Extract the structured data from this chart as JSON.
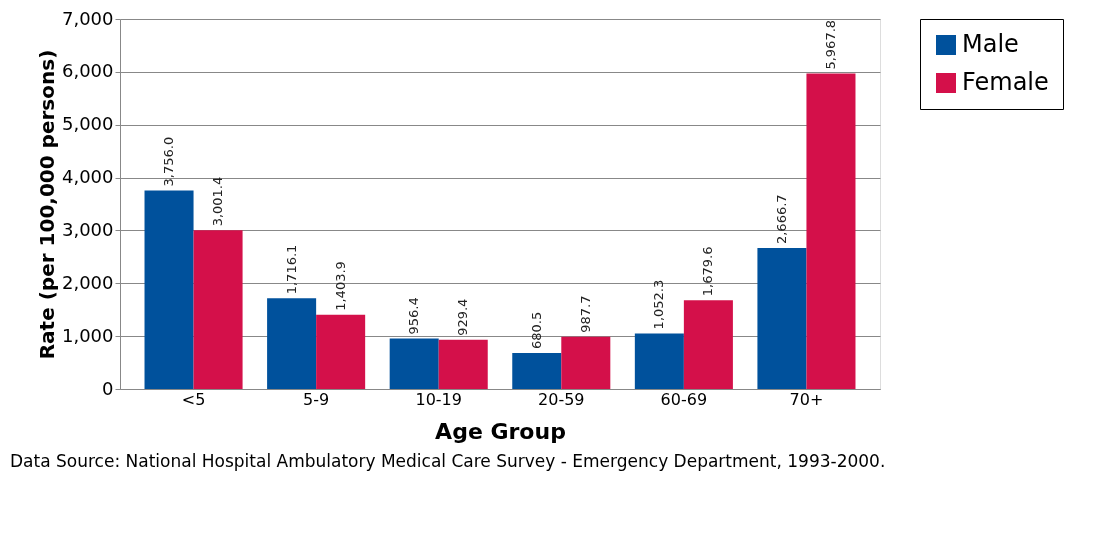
{
  "chart_data": {
    "type": "bar",
    "xlabel": "Age Group",
    "ylabel": "Rate (per 100,000 persons)",
    "categories": [
      "<5",
      "5-9",
      "10-19",
      "20-59",
      "60-69",
      "70+"
    ],
    "series": [
      {
        "name": "Male",
        "color": "#00519c",
        "values": [
          3756.0,
          1716.1,
          956.4,
          680.5,
          1052.3,
          2666.7
        ],
        "value_labels": [
          "3,756.0",
          "1,716.1",
          "956.4",
          "680.5",
          "1,052.3",
          "2,666.7"
        ]
      },
      {
        "name": "Female",
        "color": "#d4104a",
        "values": [
          3001.4,
          1403.9,
          929.4,
          987.7,
          1679.6,
          5967.8
        ],
        "value_labels": [
          "3,001.4",
          "1,403.9",
          "929.4",
          "987.7",
          "1,679.6",
          "5,967.8"
        ]
      }
    ],
    "ylim": [
      0,
      7000
    ],
    "yticks": [
      0,
      {
        "value": 1000,
        "label": "1,000"
      },
      {
        "value": 2000,
        "label": "2,000"
      },
      {
        "value": 3000,
        "label": "3,000"
      },
      {
        "value": 4000,
        "label": "4,000"
      },
      {
        "value": 5000,
        "label": "5,000"
      },
      {
        "value": 6000,
        "label": "6,000"
      },
      {
        "value": 7000,
        "label": "7,000"
      }
    ],
    "grid": "y",
    "legend": "right",
    "annotations": [
      "Data Source: National Hospital Ambulatory Medical Care Survey - Emergency Department, 1993-2000."
    ]
  }
}
